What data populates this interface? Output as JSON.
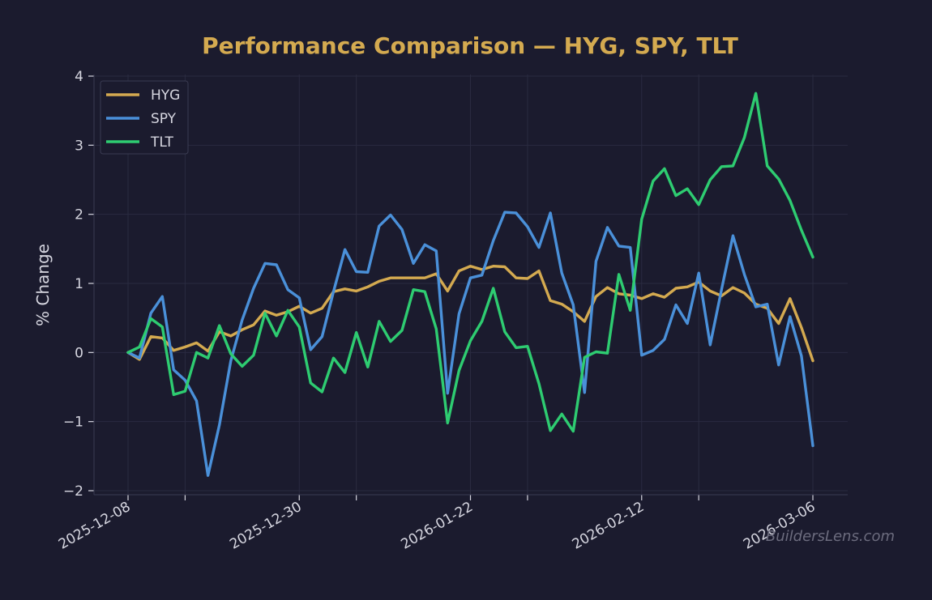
{
  "chart_data": {
    "type": "line",
    "title": "Performance Comparison — HYG, SPY, TLT",
    "xlabel": "",
    "ylabel": "% Change",
    "ylim": [
      -2,
      4
    ],
    "y_ticks": [
      -2,
      -1,
      0,
      1,
      2,
      3,
      4
    ],
    "y_tick_labels": [
      "−2",
      "−1",
      "0",
      "1",
      "2",
      "3",
      "4"
    ],
    "x_tick_labels": [
      "2025-12-08",
      "2025-12-30",
      "2026-01-22",
      "2026-02-12",
      "2026-03-06"
    ],
    "x_tick_label_index": [
      0,
      15,
      30,
      45,
      60
    ],
    "minor_x_tick_index": [
      5,
      20,
      35,
      50
    ],
    "grid": true,
    "legend_position": "top-left",
    "watermark": "BuildersLens.com",
    "series": [
      {
        "name": "HYG",
        "color": "#d4aa50",
        "values": [
          0,
          -0.1,
          0.23,
          0.21,
          0.03,
          0.08,
          0.14,
          0.02,
          0.3,
          0.24,
          0.33,
          0.4,
          0.6,
          0.54,
          0.59,
          0.67,
          0.57,
          0.64,
          0.88,
          0.92,
          0.89,
          0.95,
          1.03,
          1.08,
          1.08,
          1.08,
          1.08,
          1.14,
          0.89,
          1.18,
          1.25,
          1.2,
          1.25,
          1.24,
          1.08,
          1.07,
          1.18,
          0.75,
          0.7,
          0.59,
          0.45,
          0.81,
          0.94,
          0.85,
          0.83,
          0.78,
          0.85,
          0.8,
          0.93,
          0.95,
          1.02,
          0.89,
          0.82,
          0.94,
          0.86,
          0.7,
          0.64,
          0.42,
          0.78,
          0.36,
          -0.12
        ]
      },
      {
        "name": "SPY",
        "color": "#4a90d9",
        "values": [
          0,
          -0.08,
          0.57,
          0.81,
          -0.25,
          -0.4,
          -0.7,
          -1.78,
          -1.05,
          -0.12,
          0.47,
          0.93,
          1.29,
          1.27,
          0.91,
          0.79,
          0.04,
          0.23,
          0.88,
          1.49,
          1.17,
          1.16,
          1.83,
          1.99,
          1.78,
          1.29,
          1.56,
          1.47,
          -0.59,
          0.56,
          1.08,
          1.12,
          1.62,
          2.03,
          2.02,
          1.82,
          1.52,
          2.02,
          1.15,
          0.69,
          -0.58,
          1.32,
          1.81,
          1.54,
          1.52,
          -0.04,
          0.03,
          0.19,
          0.69,
          0.42,
          1.15,
          0.11,
          0.91,
          1.69,
          1.13,
          0.66,
          0.7,
          -0.18,
          0.52,
          -0.05,
          -1.35
        ]
      },
      {
        "name": "TLT",
        "color": "#2ecc71",
        "values": [
          0,
          0.08,
          0.49,
          0.37,
          -0.61,
          -0.56,
          0,
          -0.08,
          0.39,
          -0.02,
          -0.2,
          -0.04,
          0.57,
          0.24,
          0.61,
          0.37,
          -0.44,
          -0.57,
          -0.08,
          -0.29,
          0.29,
          -0.21,
          0.45,
          0.16,
          0.32,
          0.91,
          0.88,
          0.34,
          -1.02,
          -0.26,
          0.17,
          0.45,
          0.93,
          0.3,
          0.07,
          0.09,
          -0.45,
          -1.13,
          -0.89,
          -1.14,
          -0.07,
          0.01,
          -0.01,
          1.13,
          0.61,
          1.93,
          2.48,
          2.66,
          2.27,
          2.37,
          2.14,
          2.5,
          2.69,
          2.7,
          3.11,
          3.75,
          2.7,
          2.51,
          2.2,
          1.77,
          1.38
        ]
      }
    ]
  }
}
